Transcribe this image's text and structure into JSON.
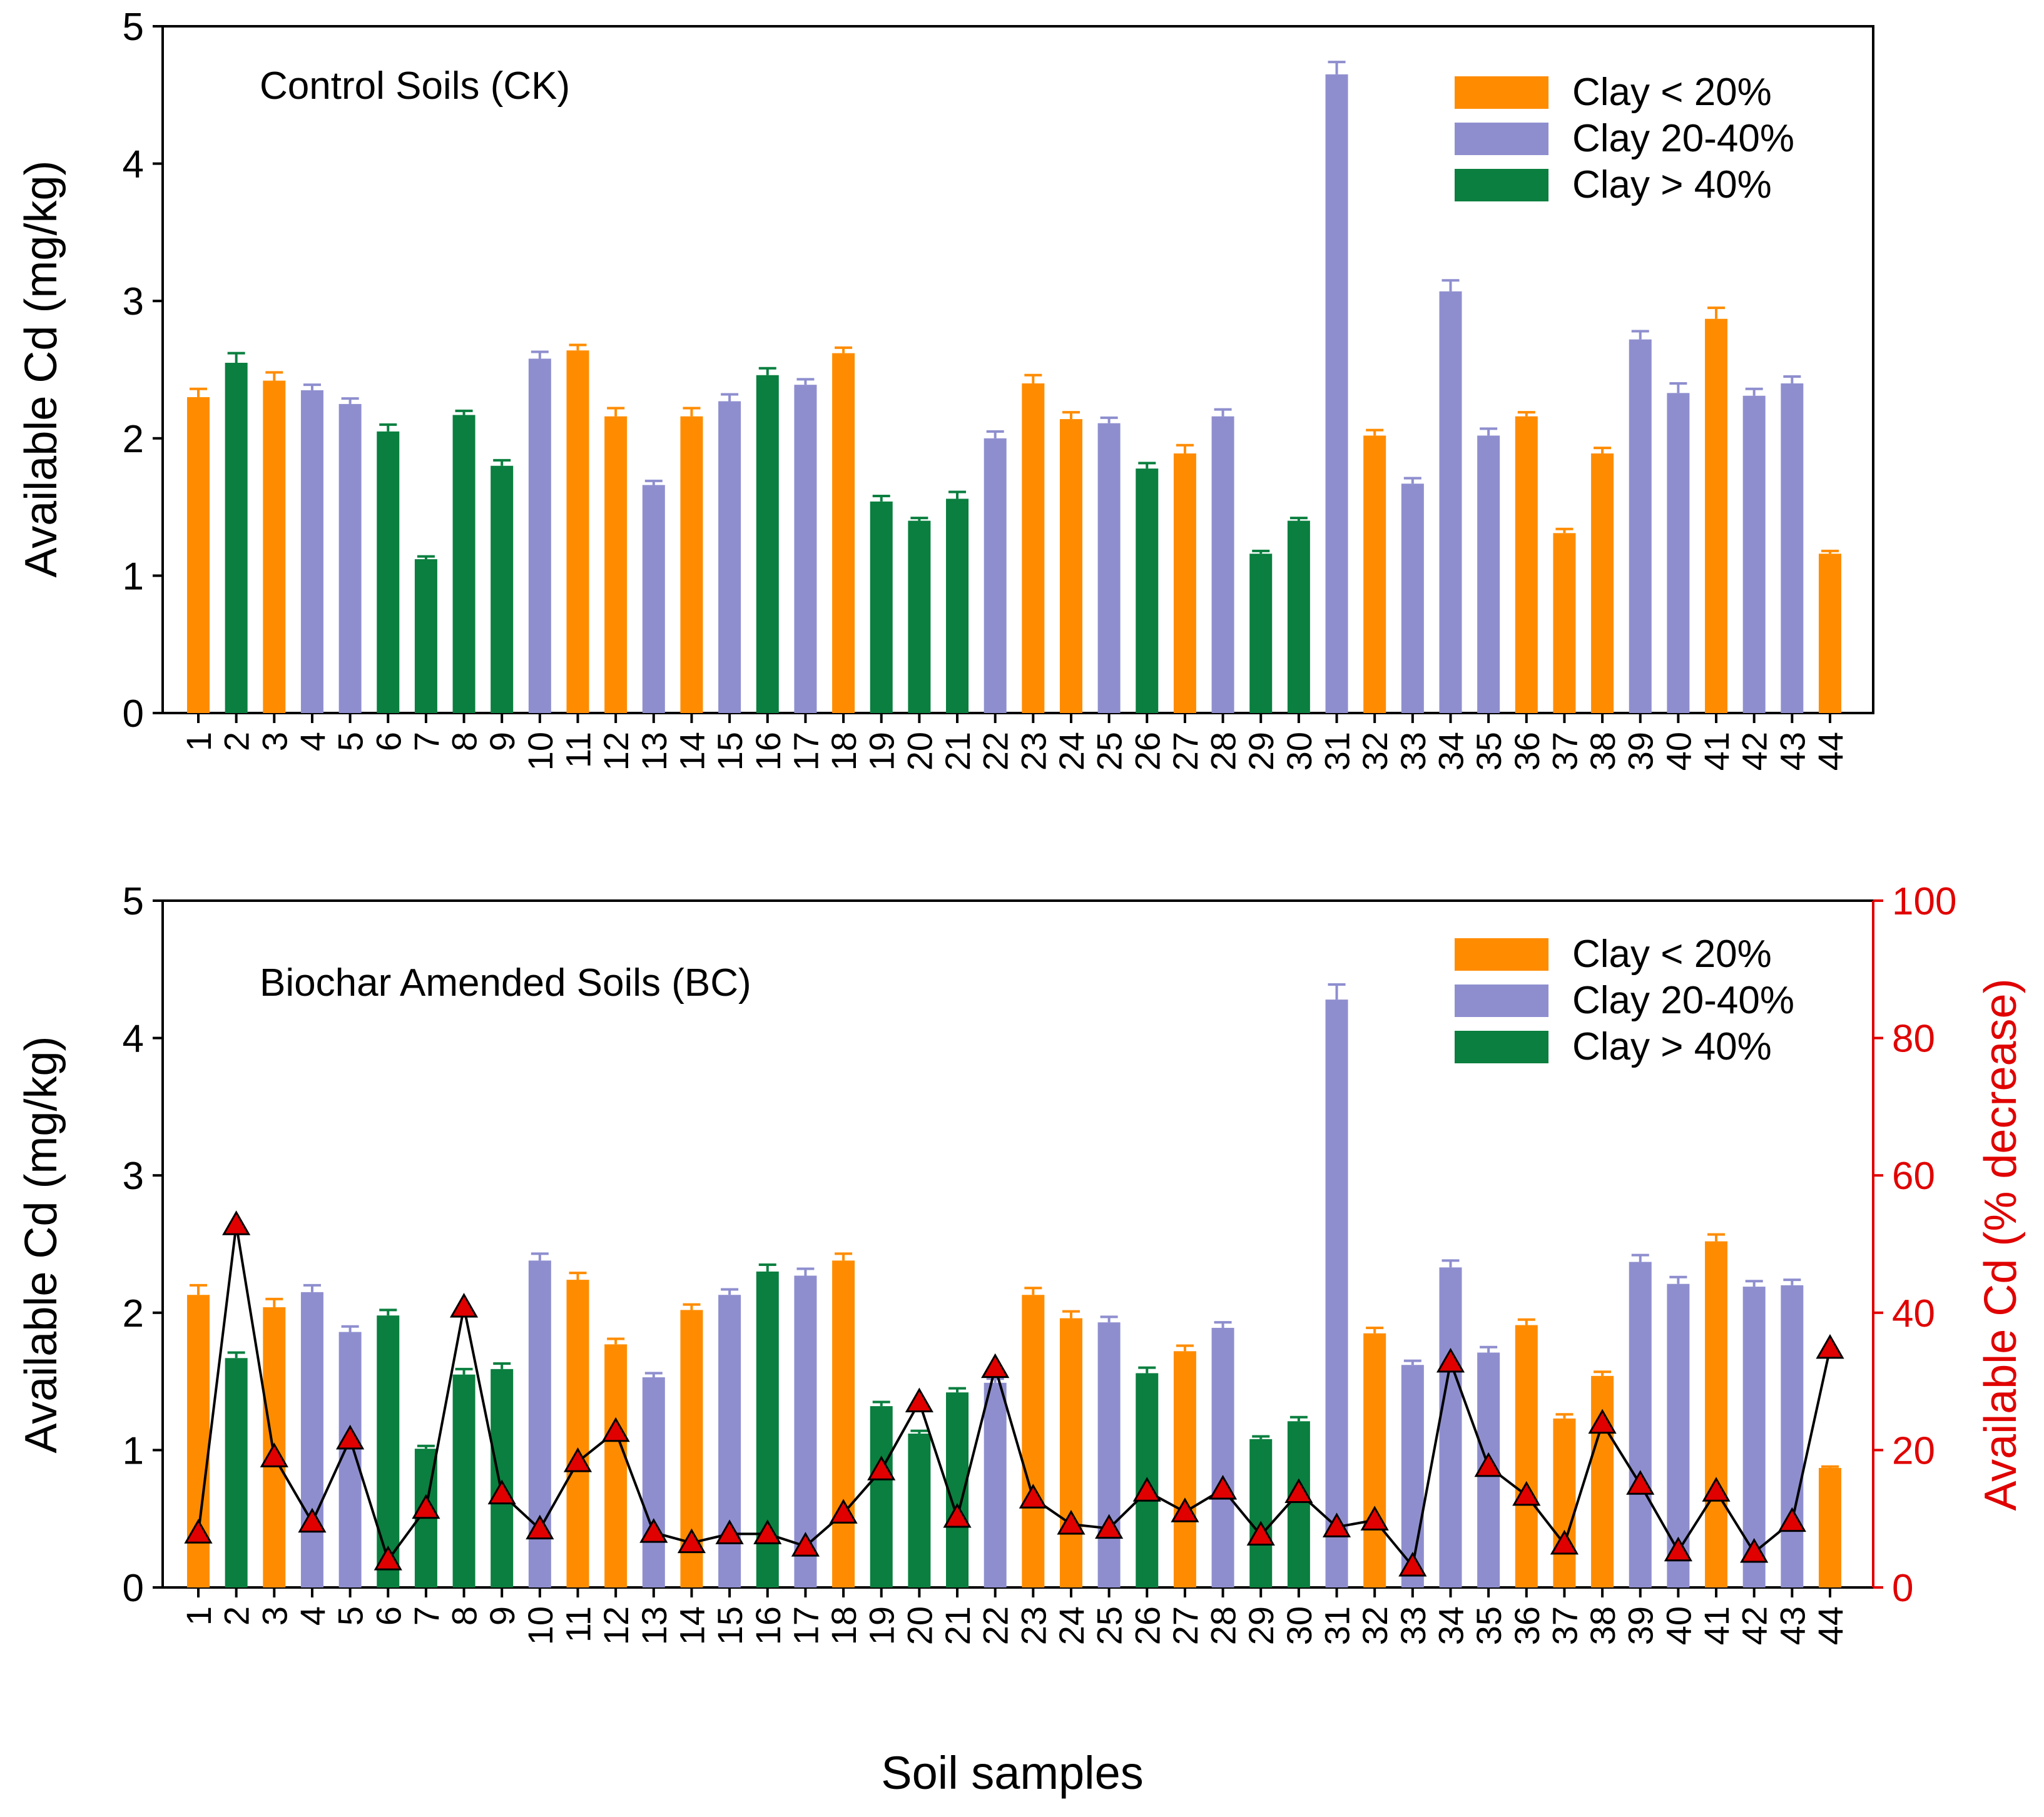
{
  "figure": {
    "xlabel": "Soil samples"
  },
  "colors": {
    "clay_lt_20": "#FF8C00",
    "clay_20_40": "#8E8ECF",
    "clay_gt_40": "#0A7F3F",
    "decrease_marker": "#E00000",
    "line": "#000000",
    "right_axis": "#E00000"
  },
  "legend": [
    {
      "key": "clay_lt_20",
      "label": "Clay < 20%"
    },
    {
      "key": "clay_20_40",
      "label": "Clay 20-40%"
    },
    {
      "key": "clay_gt_40",
      "label": "Clay > 40%"
    }
  ],
  "chart_data": [
    {
      "type": "bar",
      "title": "Control Soils (CK)",
      "xlabel": "",
      "ylabel": "Available Cd (mg/kg)",
      "ylim": [
        0,
        5
      ],
      "yticks": [
        0,
        1,
        2,
        3,
        4,
        5
      ],
      "categories": [
        "1",
        "2",
        "3",
        "4",
        "5",
        "6",
        "7",
        "8",
        "9",
        "10",
        "11",
        "12",
        "13",
        "14",
        "15",
        "16",
        "17",
        "18",
        "19",
        "20",
        "21",
        "22",
        "23",
        "24",
        "25",
        "26",
        "27",
        "28",
        "29",
        "30",
        "31",
        "32",
        "33",
        "34",
        "35",
        "36",
        "37",
        "38",
        "39",
        "40",
        "41",
        "42",
        "43",
        "44"
      ],
      "clay_group": [
        "clay_lt_20",
        "clay_gt_40",
        "clay_lt_20",
        "clay_20_40",
        "clay_20_40",
        "clay_gt_40",
        "clay_gt_40",
        "clay_gt_40",
        "clay_gt_40",
        "clay_20_40",
        "clay_lt_20",
        "clay_lt_20",
        "clay_20_40",
        "clay_lt_20",
        "clay_20_40",
        "clay_gt_40",
        "clay_20_40",
        "clay_lt_20",
        "clay_gt_40",
        "clay_gt_40",
        "clay_gt_40",
        "clay_20_40",
        "clay_lt_20",
        "clay_lt_20",
        "clay_20_40",
        "clay_gt_40",
        "clay_lt_20",
        "clay_20_40",
        "clay_gt_40",
        "clay_gt_40",
        "clay_20_40",
        "clay_lt_20",
        "clay_20_40",
        "clay_20_40",
        "clay_20_40",
        "clay_lt_20",
        "clay_lt_20",
        "clay_lt_20",
        "clay_20_40",
        "clay_20_40",
        "clay_lt_20",
        "clay_20_40",
        "clay_20_40",
        "clay_lt_20"
      ],
      "values": [
        2.3,
        2.55,
        2.42,
        2.35,
        2.25,
        2.05,
        1.12,
        2.17,
        1.8,
        2.58,
        2.64,
        2.16,
        1.66,
        2.16,
        2.27,
        2.46,
        2.39,
        2.62,
        1.54,
        1.4,
        1.56,
        2.0,
        2.4,
        2.14,
        2.11,
        1.78,
        1.89,
        2.16,
        1.16,
        1.4,
        4.65,
        2.02,
        1.67,
        3.07,
        2.02,
        2.16,
        1.31,
        1.89,
        2.72,
        2.33,
        2.87,
        2.31,
        2.4,
        1.16
      ],
      "errors": [
        0.06,
        0.07,
        0.06,
        0.04,
        0.04,
        0.05,
        0.02,
        0.03,
        0.04,
        0.05,
        0.04,
        0.06,
        0.03,
        0.06,
        0.05,
        0.05,
        0.04,
        0.04,
        0.04,
        0.02,
        0.05,
        0.05,
        0.06,
        0.05,
        0.04,
        0.04,
        0.06,
        0.05,
        0.02,
        0.02,
        0.09,
        0.04,
        0.04,
        0.08,
        0.05,
        0.03,
        0.03,
        0.04,
        0.06,
        0.07,
        0.08,
        0.05,
        0.05,
        0.02
      ],
      "legend_position": "top-right"
    },
    {
      "type": "bar",
      "title": "Biochar Amended Soils (BC)",
      "xlabel": "",
      "ylabel": "Available Cd (mg/kg)",
      "y2label": "Available Cd (% decrease)",
      "ylim": [
        0,
        5
      ],
      "yticks": [
        0,
        1,
        2,
        3,
        4,
        5
      ],
      "y2lim": [
        0,
        100
      ],
      "y2ticks": [
        0,
        20,
        40,
        60,
        80,
        100
      ],
      "categories": [
        "1",
        "2",
        "3",
        "4",
        "5",
        "6",
        "7",
        "8",
        "9",
        "10",
        "11",
        "12",
        "13",
        "14",
        "15",
        "16",
        "17",
        "18",
        "19",
        "20",
        "21",
        "22",
        "23",
        "24",
        "25",
        "26",
        "27",
        "28",
        "29",
        "30",
        "31",
        "32",
        "33",
        "34",
        "35",
        "36",
        "37",
        "38",
        "39",
        "40",
        "41",
        "42",
        "43",
        "44"
      ],
      "clay_group": [
        "clay_lt_20",
        "clay_gt_40",
        "clay_lt_20",
        "clay_20_40",
        "clay_20_40",
        "clay_gt_40",
        "clay_gt_40",
        "clay_gt_40",
        "clay_gt_40",
        "clay_20_40",
        "clay_lt_20",
        "clay_lt_20",
        "clay_20_40",
        "clay_lt_20",
        "clay_20_40",
        "clay_gt_40",
        "clay_20_40",
        "clay_lt_20",
        "clay_gt_40",
        "clay_gt_40",
        "clay_gt_40",
        "clay_20_40",
        "clay_lt_20",
        "clay_lt_20",
        "clay_20_40",
        "clay_gt_40",
        "clay_lt_20",
        "clay_20_40",
        "clay_gt_40",
        "clay_gt_40",
        "clay_20_40",
        "clay_lt_20",
        "clay_20_40",
        "clay_20_40",
        "clay_20_40",
        "clay_lt_20",
        "clay_lt_20",
        "clay_lt_20",
        "clay_20_40",
        "clay_20_40",
        "clay_lt_20",
        "clay_20_40",
        "clay_20_40",
        "clay_lt_20"
      ],
      "values": [
        2.13,
        1.67,
        2.04,
        2.15,
        1.86,
        1.98,
        1.01,
        1.55,
        1.59,
        2.38,
        2.24,
        1.77,
        1.53,
        2.02,
        2.13,
        2.3,
        2.27,
        2.38,
        1.32,
        1.12,
        1.42,
        1.49,
        2.13,
        1.96,
        1.93,
        1.56,
        1.72,
        1.89,
        1.08,
        1.21,
        4.28,
        1.85,
        1.62,
        2.33,
        1.71,
        1.91,
        1.23,
        1.54,
        2.37,
        2.21,
        2.52,
        2.19,
        2.2,
        0.87
      ],
      "errors": [
        0.07,
        0.04,
        0.06,
        0.05,
        0.04,
        0.04,
        0.02,
        0.04,
        0.04,
        0.05,
        0.05,
        0.04,
        0.03,
        0.04,
        0.04,
        0.05,
        0.05,
        0.05,
        0.03,
        0.02,
        0.03,
        0.03,
        0.05,
        0.05,
        0.04,
        0.04,
        0.04,
        0.04,
        0.02,
        0.03,
        0.11,
        0.04,
        0.03,
        0.05,
        0.04,
        0.04,
        0.03,
        0.03,
        0.05,
        0.05,
        0.05,
        0.04,
        0.04,
        0.01
      ],
      "decrease_percent": [
        7.9,
        52.8,
        19.0,
        9.5,
        21.6,
        4.0,
        11.5,
        40.8,
        13.6,
        8.5,
        18.3,
        22.7,
        8.0,
        6.5,
        7.8,
        7.8,
        6.0,
        10.8,
        17.1,
        27.0,
        10.2,
        32.0,
        13.0,
        9.2,
        8.6,
        14.0,
        11.0,
        14.3,
        7.6,
        13.8,
        8.8,
        9.8,
        3.1,
        32.8,
        17.6,
        13.4,
        6.3,
        23.9,
        15.0,
        5.3,
        14.0,
        5.1,
        9.6,
        34.8
      ],
      "legend_position": "top-right"
    }
  ]
}
